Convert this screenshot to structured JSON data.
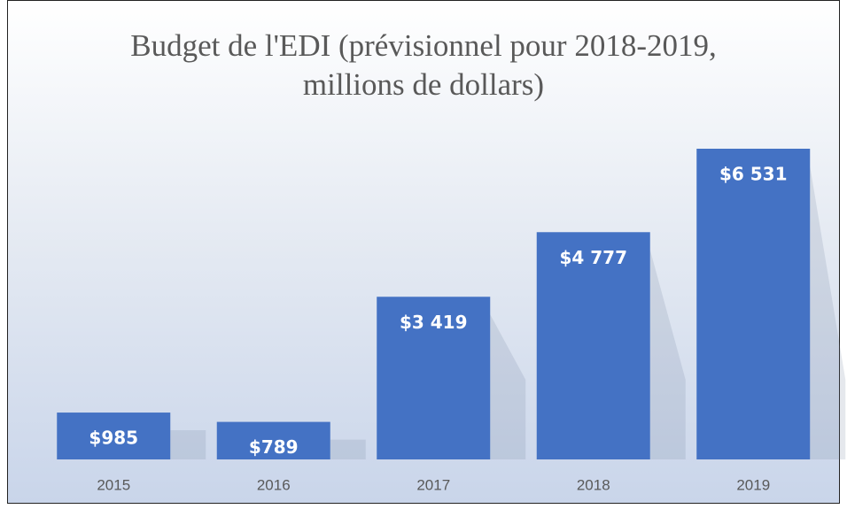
{
  "chart_data": {
    "type": "bar",
    "title": "Budget de l'EDI (prévisionnel pour 2018-2019, millions de dollars)",
    "categories": [
      "2015",
      "2016",
      "2017",
      "2018",
      "2019"
    ],
    "values": [
      985,
      789,
      3419,
      4777,
      6531
    ],
    "value_labels": [
      "$985",
      "$789",
      "$3 419",
      "$4 777",
      "$6 531"
    ],
    "color": "#4472c4"
  }
}
